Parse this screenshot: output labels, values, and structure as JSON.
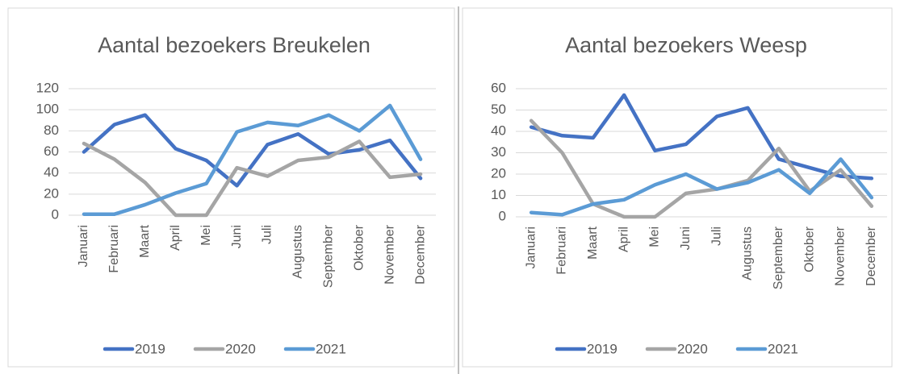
{
  "chart_data": [
    {
      "type": "line",
      "title": "Aantal bezoekers Breukelen",
      "categories": [
        "Januari",
        "Februari",
        "Maart",
        "April",
        "Mei",
        "Juni",
        "Juli",
        "Augustus",
        "September",
        "Oktober",
        "November",
        "December"
      ],
      "series": [
        {
          "name": "2019",
          "color": "#4472c4",
          "values": [
            60,
            86,
            95,
            63,
            52,
            28,
            67,
            77,
            58,
            62,
            71,
            35
          ]
        },
        {
          "name": "2020",
          "color": "#a5a5a5",
          "values": [
            68,
            53,
            31,
            0,
            0,
            45,
            37,
            52,
            55,
            70,
            36,
            39
          ]
        },
        {
          "name": "2021",
          "color": "#5b9bd5",
          "values": [
            1,
            1,
            10,
            21,
            30,
            79,
            88,
            85,
            95,
            80,
            104,
            53
          ]
        }
      ],
      "ylim": [
        0,
        120
      ],
      "yticks": [
        0,
        20,
        40,
        60,
        80,
        100,
        120
      ],
      "grid": true,
      "legend": "bottom"
    },
    {
      "type": "line",
      "title": "Aantal bezoekers Weesp",
      "categories": [
        "Januari",
        "Februari",
        "Maart",
        "April",
        "Mei",
        "Juni",
        "Juli",
        "Augustus",
        "September",
        "Oktober",
        "November",
        "December"
      ],
      "series": [
        {
          "name": "2019",
          "color": "#4472c4",
          "values": [
            42,
            38,
            37,
            57,
            31,
            34,
            47,
            51,
            27,
            23,
            19,
            18
          ]
        },
        {
          "name": "2020",
          "color": "#a5a5a5",
          "values": [
            45,
            30,
            6,
            0,
            0,
            11,
            13,
            17,
            32,
            12,
            22,
            5
          ]
        },
        {
          "name": "2021",
          "color": "#5b9bd5",
          "values": [
            2,
            1,
            6,
            8,
            15,
            20,
            13,
            16,
            22,
            11,
            27,
            9
          ]
        }
      ],
      "ylim": [
        0,
        60
      ],
      "yticks": [
        0,
        10,
        20,
        30,
        40,
        50,
        60
      ],
      "grid": true,
      "legend": "bottom"
    }
  ]
}
